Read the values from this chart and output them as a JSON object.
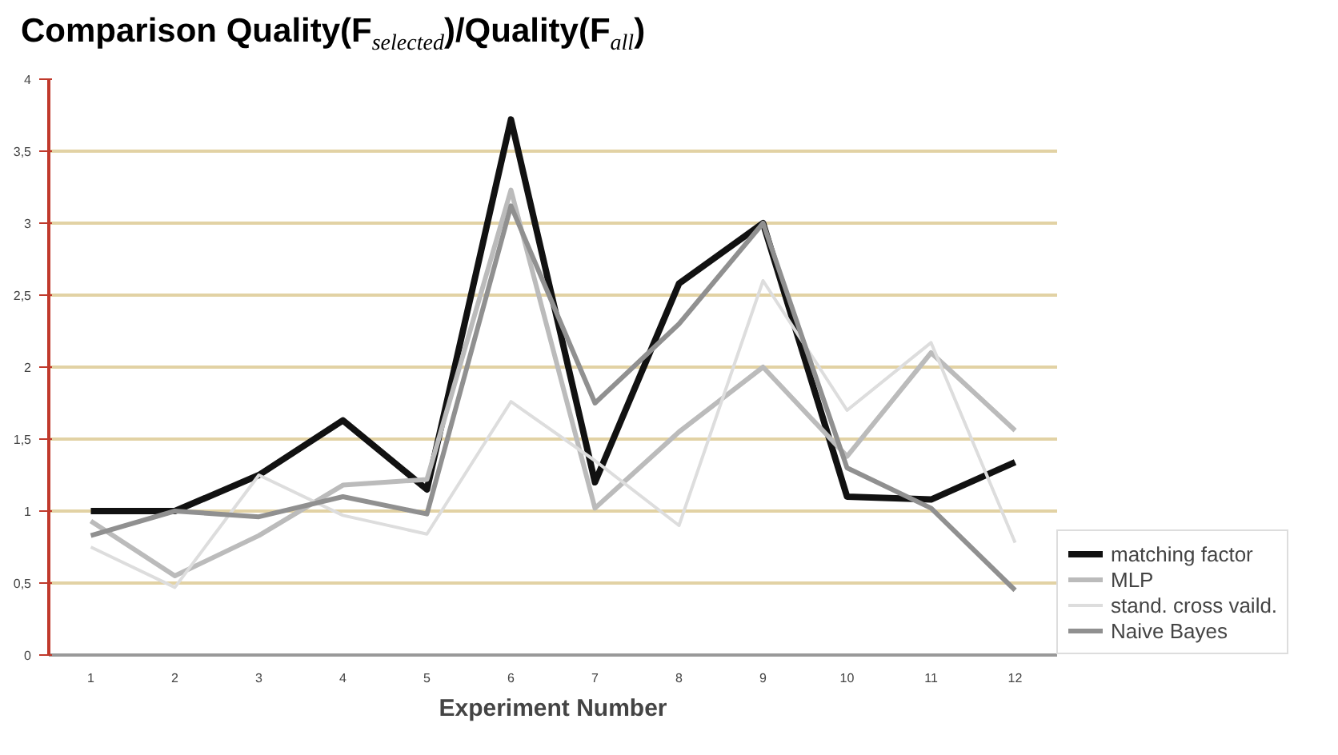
{
  "chart_data": {
    "type": "line",
    "title": "Comparison Quality(F$_{selected}$)/Quality(F$_{all}$)",
    "xlabel": "Experiment Number",
    "categories": [
      "1",
      "2",
      "3",
      "4",
      "5",
      "6",
      "7",
      "8",
      "9",
      "10",
      "11",
      "12"
    ],
    "ylim": [
      0,
      4
    ],
    "yticks": [
      0,
      {
        "value": 0.5,
        "label": "0,5"
      },
      1,
      {
        "value": 1.5,
        "label": "1,5"
      },
      2,
      {
        "value": 2.5,
        "label": "2,5"
      },
      3,
      {
        "value": 3.5,
        "label": "3,5"
      },
      4
    ],
    "grid": "y",
    "legend": "bottom right",
    "marker": "none",
    "line_style": "solid",
    "series": [
      {
        "name": "matching factor",
        "color": "#111111",
        "values": [
          1.0,
          1.0,
          1.25,
          1.63,
          1.15,
          3.72,
          1.2,
          2.58,
          3.0,
          1.1,
          1.08,
          1.34
        ]
      },
      {
        "name": "MLP",
        "color": "#bbbbbb",
        "values": [
          0.93,
          0.55,
          0.83,
          1.18,
          1.22,
          3.23,
          1.02,
          1.55,
          2.0,
          1.38,
          2.1,
          1.56
        ]
      },
      {
        "name": "stand. cross vaild.",
        "color": "#dddddd",
        "values": [
          0.75,
          0.47,
          1.25,
          0.97,
          0.84,
          1.76,
          1.35,
          0.9,
          2.6,
          1.7,
          2.17,
          0.78
        ]
      },
      {
        "name": "Naive Bayes",
        "color": "#909090",
        "values": [
          0.83,
          1.0,
          0.96,
          1.1,
          0.98,
          3.12,
          1.75,
          2.3,
          3.0,
          1.3,
          1.02,
          0.45
        ]
      }
    ]
  }
}
